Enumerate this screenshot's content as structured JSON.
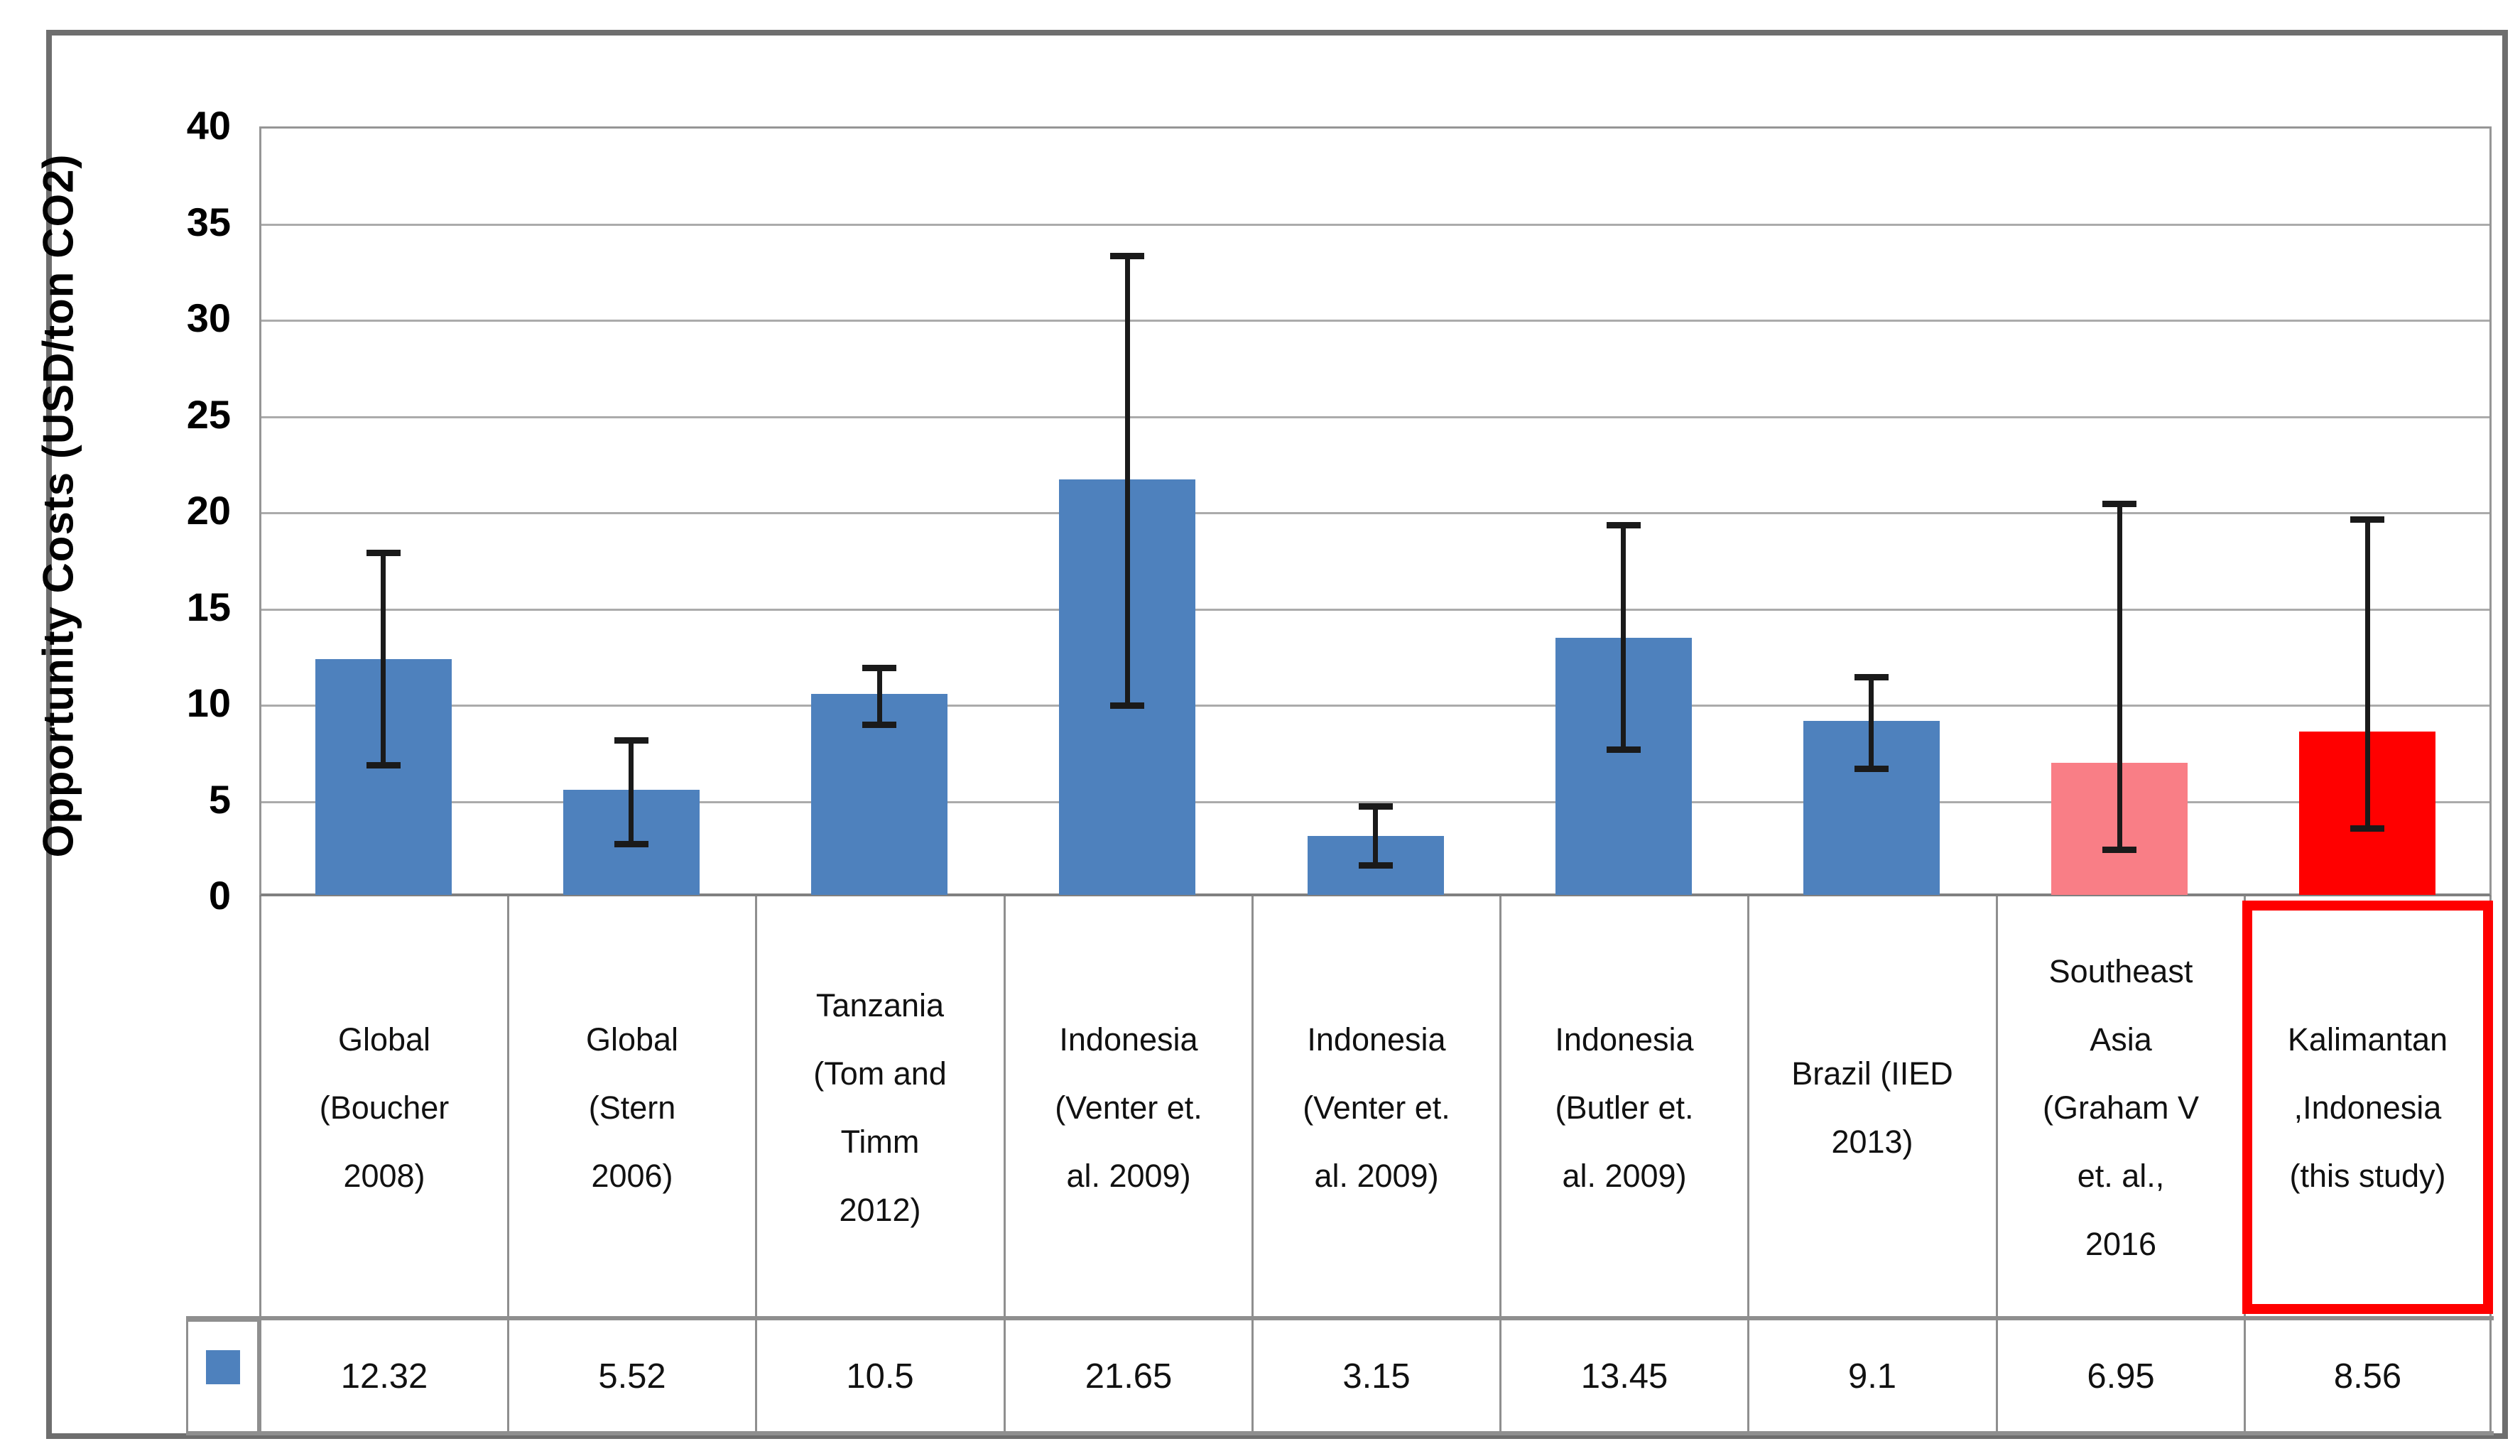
{
  "chart_data": {
    "type": "bar",
    "title": "",
    "ylabel": "Opportunity Costs (USD/ton CO2)",
    "xlabel": "",
    "ylim": [
      0,
      40
    ],
    "ytick_step": 5,
    "yticks": [
      "0",
      "5",
      "10",
      "15",
      "20",
      "25",
      "30",
      "35",
      "40"
    ],
    "grid": true,
    "legend_position": "bottom-table",
    "categories": [
      "Global (Boucher 2008)",
      "Global (Stern 2006)",
      "Tanzania (Tom and Timm 2012)",
      "Indonesia (Venter et. al. 2009)",
      "Indonesia (Venter et. al. 2009)",
      "Indonesia (Butler et. al. 2009)",
      "Brazil (IIED 2013)",
      "Southeast Asia (Graham V et. al., 2016",
      "Kalimantan ,Indonesia (this study)"
    ],
    "category_lines": [
      [
        "Global",
        "(Boucher",
        "2008)"
      ],
      [
        "Global",
        "(Stern",
        "2006)"
      ],
      [
        "Tanzania",
        "(Tom and",
        "Timm",
        "2012)"
      ],
      [
        "Indonesia",
        "(Venter et.",
        "al. 2009)"
      ],
      [
        "Indonesia",
        "(Venter et.",
        "al. 2009)"
      ],
      [
        "Indonesia",
        "(Butler et.",
        "al. 2009)"
      ],
      [
        "Brazil (IIED",
        "2013)"
      ],
      [
        "Southeast",
        "Asia",
        "(Graham V",
        "et. al.,",
        "2016"
      ],
      [
        "Kalimantan",
        ",Indonesia",
        "(this study)"
      ]
    ],
    "series": [
      {
        "name": "Opportunity Costs",
        "values": [
          12.32,
          5.52,
          10.5,
          21.65,
          3.15,
          13.45,
          9.1,
          6.95,
          8.56
        ],
        "error_low": [
          6.8,
          2.7,
          8.9,
          9.9,
          1.6,
          7.6,
          6.6,
          2.4,
          3.5
        ],
        "error_high": [
          17.85,
          8.1,
          11.9,
          33.3,
          4.7,
          19.3,
          11.4,
          20.4,
          19.6
        ]
      }
    ],
    "bar_colors": [
      "#4E81BD",
      "#4E81BD",
      "#4E81BD",
      "#4E81BD",
      "#4E81BD",
      "#4E81BD",
      "#4E81BD",
      "#F97E86",
      "#FF0000"
    ],
    "highlight": {
      "index": 8,
      "box_color": "#FF0000"
    },
    "data_table": {
      "legend_marker_color": "#4E81BD",
      "row_values": [
        "12.32",
        "5.52",
        "10.5",
        "21.65",
        "3.15",
        "13.45",
        "9.1",
        "6.95",
        "8.56"
      ]
    }
  }
}
